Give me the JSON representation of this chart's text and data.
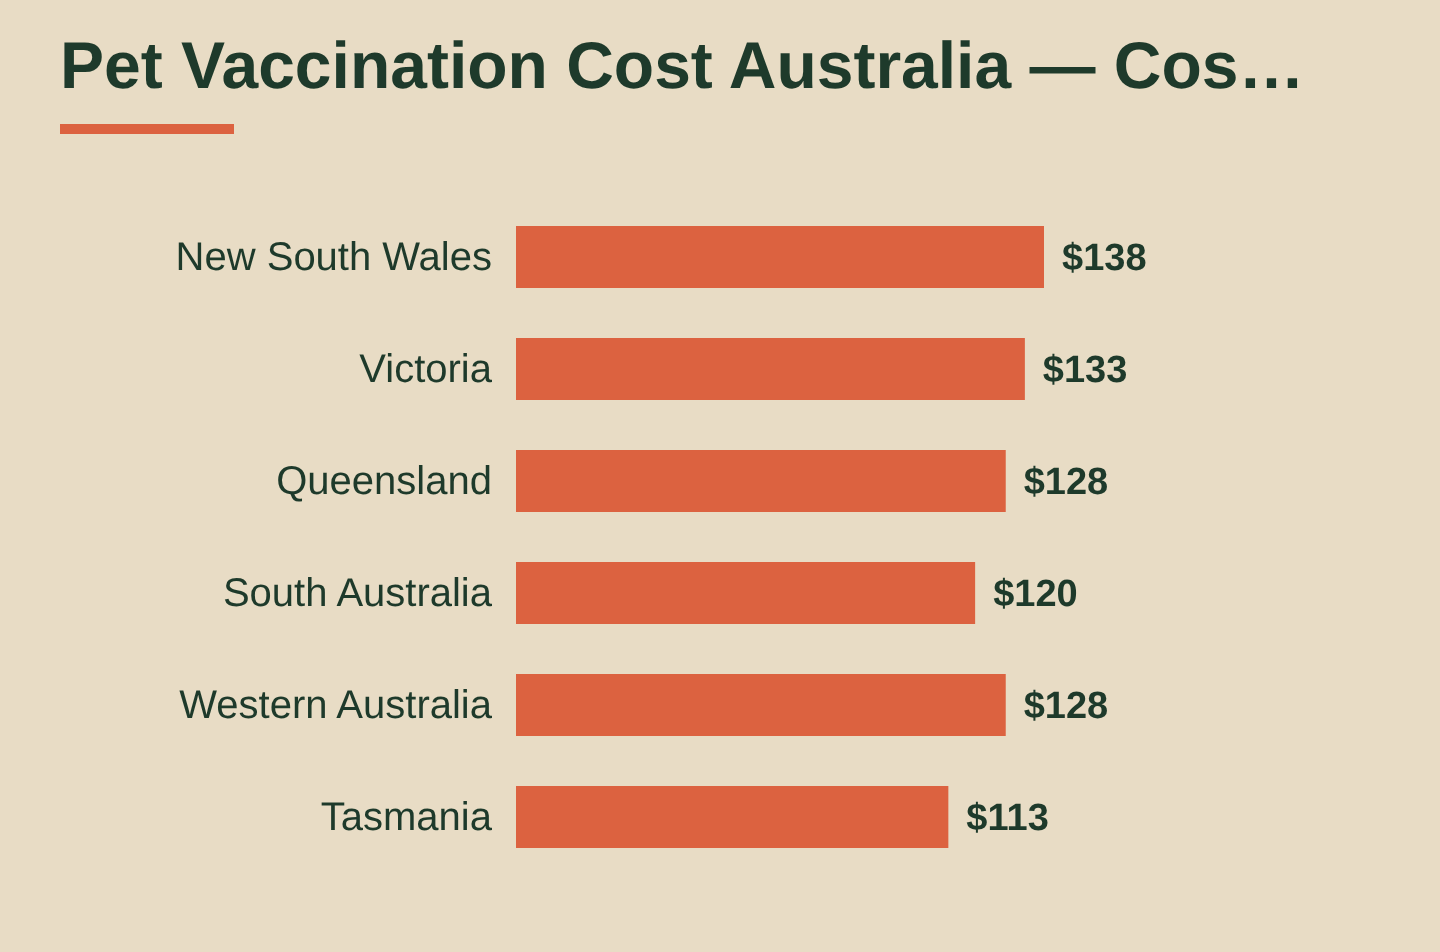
{
  "chart_data": {
    "type": "bar",
    "orientation": "horizontal",
    "title": "Pet Vaccination Cost Australia — Cos…",
    "categories": [
      "New South Wales",
      "Victoria",
      "Queensland",
      "South Australia",
      "Western Australia",
      "Tasmania"
    ],
    "values": [
      138,
      133,
      128,
      120,
      128,
      113
    ],
    "value_labels": [
      "$138",
      "$133",
      "$128",
      "$120",
      "$128",
      "$113"
    ],
    "color": "#dc6240",
    "grid": false,
    "legend": false
  }
}
